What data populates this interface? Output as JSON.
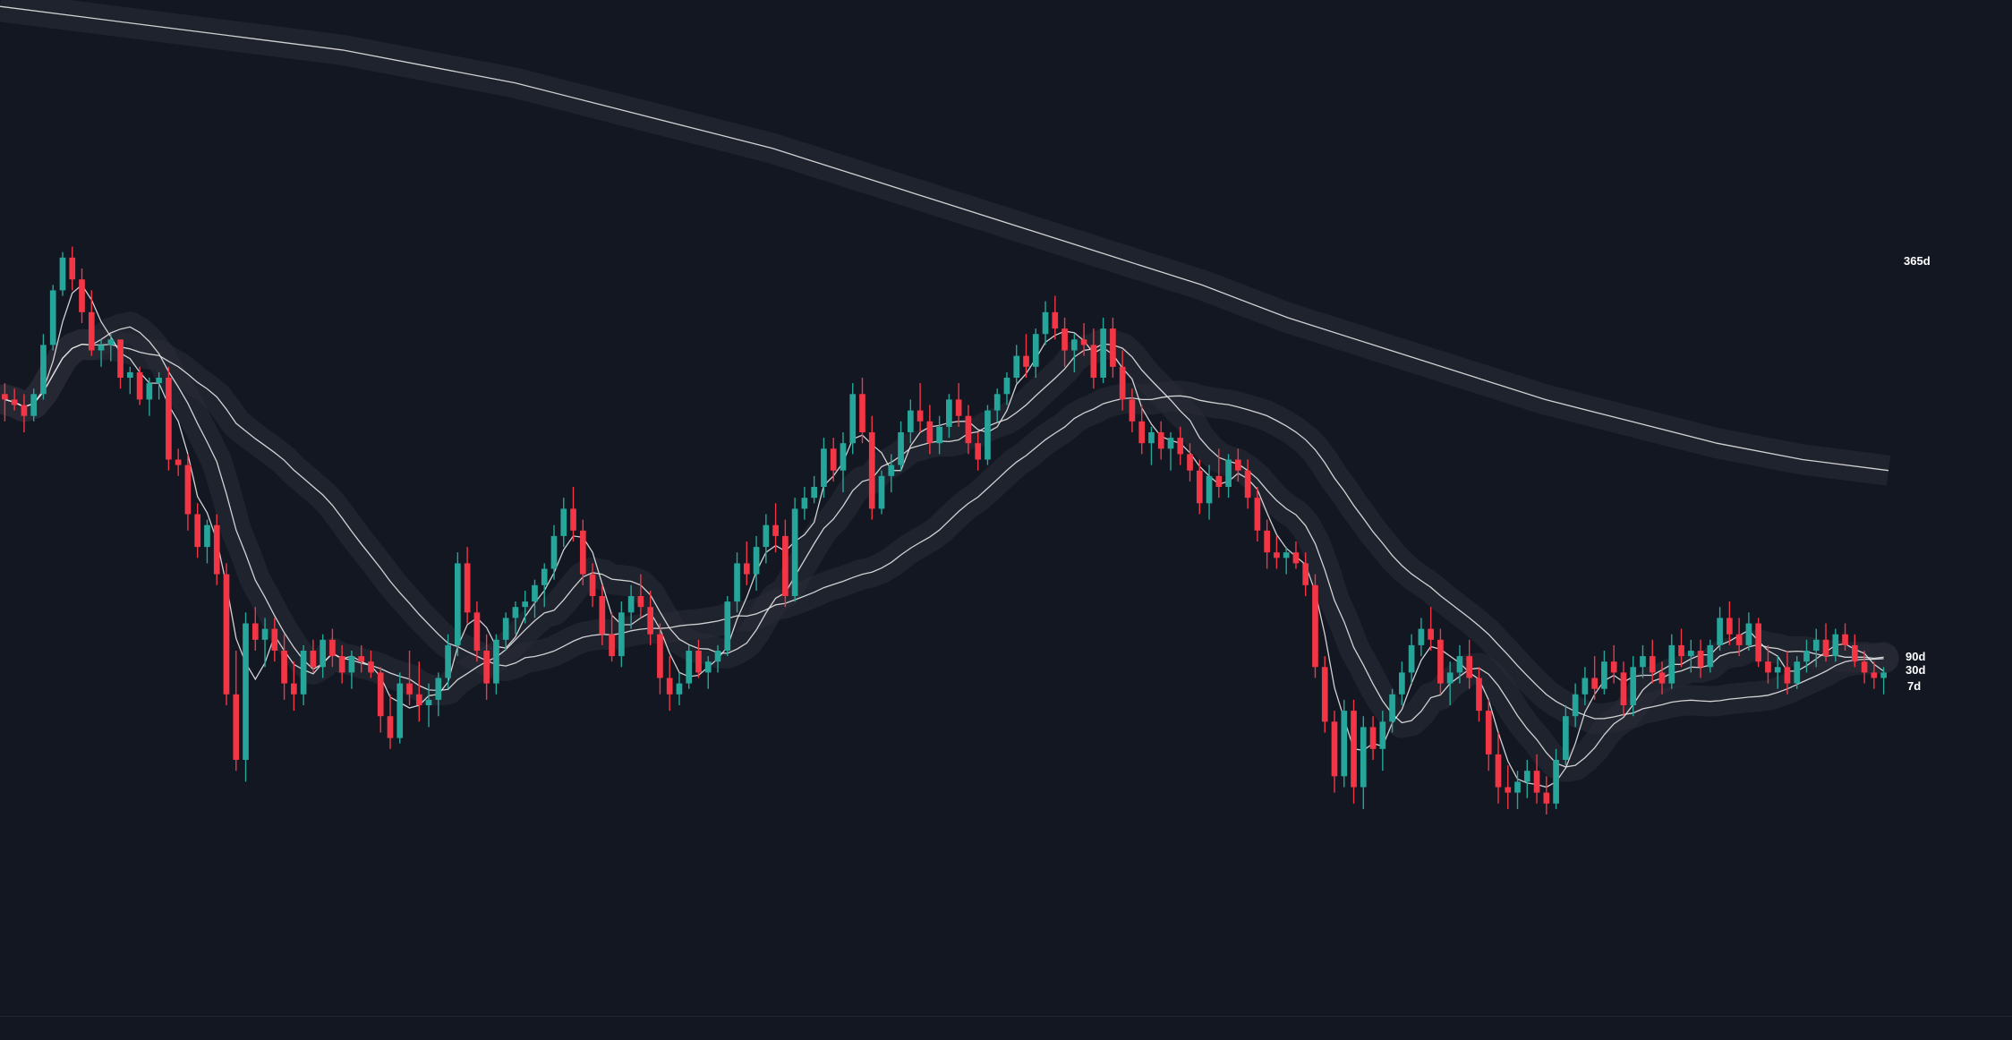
{
  "chart_data": {
    "type": "candlestick",
    "title": "",
    "xlabel": "",
    "ylabel": "",
    "y_scale": "linear",
    "grid": false,
    "legend": "none",
    "ylim": [
      0,
      100
    ],
    "colors": {
      "background": "#131722",
      "up": "#26a69a",
      "down": "#f23645",
      "ma_line": "#e6e6e6",
      "ma_band": "#2a2e39",
      "label": "#ffffff"
    },
    "candles": [
      [
        77,
        79,
        72,
        76
      ],
      [
        76,
        78,
        74,
        75
      ],
      [
        75,
        77,
        70,
        73
      ],
      [
        73,
        78,
        72,
        77
      ],
      [
        77,
        88,
        76,
        86
      ],
      [
        86,
        97,
        85,
        96
      ],
      [
        96,
        103,
        95,
        102
      ],
      [
        102,
        104,
        96,
        98
      ],
      [
        98,
        100,
        90,
        92
      ],
      [
        92,
        96,
        84,
        85
      ],
      [
        85,
        87,
        82,
        86
      ],
      [
        86,
        88,
        83,
        87
      ],
      [
        87,
        86,
        78,
        80
      ],
      [
        80,
        82,
        77,
        81
      ],
      [
        81,
        82,
        75,
        76
      ],
      [
        76,
        80,
        73,
        79
      ],
      [
        79,
        81,
        76,
        80
      ],
      [
        80,
        82,
        63,
        65
      ],
      [
        65,
        67,
        62,
        64
      ],
      [
        64,
        66,
        52,
        55
      ],
      [
        55,
        57,
        47,
        49
      ],
      [
        49,
        54,
        46,
        53
      ],
      [
        53,
        55,
        42,
        44
      ],
      [
        44,
        46,
        20,
        22
      ],
      [
        22,
        30,
        8,
        10
      ],
      [
        10,
        37,
        6,
        35
      ],
      [
        35,
        38,
        30,
        32
      ],
      [
        32,
        36,
        27,
        34
      ],
      [
        34,
        36,
        28,
        30
      ],
      [
        30,
        33,
        21,
        24
      ],
      [
        24,
        28,
        19,
        22
      ],
      [
        22,
        31,
        20,
        30
      ],
      [
        30,
        32,
        26,
        27
      ],
      [
        27,
        33,
        25,
        32
      ],
      [
        32,
        34,
        27,
        29
      ],
      [
        29,
        31,
        24,
        26
      ],
      [
        26,
        30,
        23,
        29
      ],
      [
        29,
        31,
        26,
        28
      ],
      [
        28,
        30,
        25,
        26
      ],
      [
        26,
        27,
        15,
        18
      ],
      [
        18,
        22,
        12,
        14
      ],
      [
        14,
        26,
        13,
        24
      ],
      [
        24,
        30,
        20,
        22
      ],
      [
        22,
        28,
        17,
        20
      ],
      [
        20,
        24,
        16,
        21
      ],
      [
        21,
        26,
        18,
        25
      ],
      [
        25,
        33,
        23,
        31
      ],
      [
        31,
        48,
        29,
        46
      ],
      [
        46,
        49,
        35,
        37
      ],
      [
        37,
        39,
        28,
        30
      ],
      [
        30,
        33,
        21,
        24
      ],
      [
        24,
        33,
        22,
        32
      ],
      [
        32,
        37,
        30,
        36
      ],
      [
        36,
        39,
        33,
        38
      ],
      [
        38,
        41,
        35,
        39
      ],
      [
        39,
        43,
        36,
        42
      ],
      [
        42,
        46,
        38,
        45
      ],
      [
        45,
        53,
        43,
        51
      ],
      [
        51,
        58,
        49,
        56
      ],
      [
        56,
        60,
        50,
        52
      ],
      [
        52,
        54,
        42,
        44
      ],
      [
        44,
        46,
        38,
        40
      ],
      [
        40,
        42,
        31,
        33
      ],
      [
        33,
        37,
        28,
        29
      ],
      [
        29,
        39,
        27,
        37
      ],
      [
        37,
        42,
        34,
        40
      ],
      [
        40,
        44,
        36,
        38
      ],
      [
        38,
        41,
        31,
        33
      ],
      [
        33,
        35,
        22,
        25
      ],
      [
        25,
        29,
        19,
        22
      ],
      [
        22,
        26,
        20,
        24
      ],
      [
        24,
        31,
        23,
        30
      ],
      [
        30,
        32,
        25,
        26
      ],
      [
        26,
        29,
        23,
        28
      ],
      [
        28,
        31,
        26,
        30
      ],
      [
        30,
        40,
        29,
        39
      ],
      [
        39,
        48,
        37,
        46
      ],
      [
        46,
        50,
        42,
        44
      ],
      [
        44,
        51,
        41,
        49
      ],
      [
        49,
        55,
        46,
        53
      ],
      [
        53,
        57,
        48,
        51
      ],
      [
        51,
        54,
        38,
        40
      ],
      [
        40,
        58,
        39,
        56
      ],
      [
        56,
        60,
        54,
        58
      ],
      [
        58,
        62,
        57,
        60
      ],
      [
        60,
        69,
        58,
        67
      ],
      [
        67,
        69,
        61,
        63
      ],
      [
        63,
        70,
        59,
        68
      ],
      [
        68,
        79,
        66,
        77
      ],
      [
        77,
        80,
        68,
        70
      ],
      [
        70,
        73,
        54,
        56
      ],
      [
        56,
        63,
        55,
        62
      ],
      [
        62,
        66,
        59,
        64
      ],
      [
        64,
        72,
        63,
        70
      ],
      [
        70,
        76,
        68,
        74
      ],
      [
        74,
        79,
        70,
        72
      ],
      [
        72,
        75,
        66,
        68
      ],
      [
        68,
        73,
        66,
        71
      ],
      [
        71,
        77,
        69,
        76
      ],
      [
        76,
        79,
        71,
        73
      ],
      [
        73,
        75,
        66,
        68
      ],
      [
        68,
        70,
        63,
        65
      ],
      [
        65,
        75,
        64,
        74
      ],
      [
        74,
        78,
        72,
        77
      ],
      [
        77,
        81,
        75,
        80
      ],
      [
        80,
        86,
        79,
        84
      ],
      [
        84,
        88,
        80,
        82
      ],
      [
        82,
        89,
        80,
        88
      ],
      [
        88,
        94,
        86,
        92
      ],
      [
        92,
        95,
        87,
        89
      ],
      [
        89,
        91,
        82,
        85
      ],
      [
        85,
        88,
        81,
        87
      ],
      [
        87,
        90,
        84,
        86
      ],
      [
        86,
        89,
        78,
        80
      ],
      [
        80,
        91,
        79,
        89
      ],
      [
        89,
        91,
        80,
        82
      ],
      [
        82,
        85,
        74,
        76
      ],
      [
        76,
        78,
        70,
        72
      ],
      [
        72,
        75,
        66,
        68
      ],
      [
        68,
        71,
        64,
        70
      ],
      [
        70,
        72,
        65,
        67
      ],
      [
        67,
        70,
        63,
        69
      ],
      [
        69,
        71,
        64,
        66
      ],
      [
        66,
        68,
        61,
        63
      ],
      [
        63,
        65,
        55,
        57
      ],
      [
        57,
        64,
        54,
        62
      ],
      [
        62,
        67,
        58,
        60
      ],
      [
        60,
        66,
        58,
        65
      ],
      [
        65,
        67,
        61,
        63
      ],
      [
        63,
        65,
        56,
        58
      ],
      [
        58,
        60,
        50,
        52
      ],
      [
        52,
        54,
        45,
        48
      ],
      [
        48,
        51,
        45,
        47
      ],
      [
        47,
        49,
        44,
        48
      ],
      [
        48,
        50,
        45,
        46
      ],
      [
        46,
        48,
        40,
        42
      ],
      [
        42,
        44,
        25,
        27
      ],
      [
        27,
        29,
        15,
        17
      ],
      [
        17,
        19,
        4,
        7
      ],
      [
        7,
        21,
        5,
        19
      ],
      [
        19,
        21,
        2,
        5
      ],
      [
        5,
        18,
        1,
        16
      ],
      [
        16,
        18,
        10,
        12
      ],
      [
        12,
        19,
        8,
        17
      ],
      [
        17,
        23,
        15,
        22
      ],
      [
        22,
        28,
        20,
        26
      ],
      [
        26,
        33,
        24,
        31
      ],
      [
        31,
        36,
        29,
        34
      ],
      [
        34,
        38,
        30,
        32
      ],
      [
        32,
        34,
        22,
        24
      ],
      [
        24,
        28,
        20,
        26
      ],
      [
        26,
        31,
        24,
        29
      ],
      [
        29,
        32,
        23,
        25
      ],
      [
        25,
        27,
        17,
        19
      ],
      [
        19,
        21,
        8,
        11
      ],
      [
        11,
        15,
        2,
        5
      ],
      [
        5,
        9,
        1,
        4
      ],
      [
        4,
        8,
        1,
        6
      ],
      [
        6,
        10,
        3,
        8
      ],
      [
        8,
        11,
        2,
        4
      ],
      [
        4,
        7,
        0,
        2
      ],
      [
        2,
        12,
        1,
        10
      ],
      [
        10,
        20,
        9,
        18
      ],
      [
        18,
        24,
        16,
        22
      ],
      [
        22,
        27,
        20,
        25
      ],
      [
        25,
        29,
        21,
        23
      ],
      [
        23,
        30,
        22,
        28
      ],
      [
        28,
        31,
        24,
        26
      ],
      [
        26,
        28,
        18,
        20
      ],
      [
        20,
        29,
        18,
        27
      ],
      [
        27,
        31,
        25,
        29
      ],
      [
        29,
        32,
        24,
        26
      ],
      [
        26,
        28,
        22,
        24
      ],
      [
        24,
        33,
        23,
        31
      ],
      [
        31,
        34,
        27,
        29
      ],
      [
        29,
        32,
        26,
        30
      ],
      [
        30,
        32,
        25,
        27
      ],
      [
        27,
        32,
        26,
        31
      ],
      [
        31,
        38,
        30,
        36
      ],
      [
        36,
        39,
        31,
        33
      ],
      [
        33,
        36,
        29,
        31
      ],
      [
        31,
        37,
        30,
        35
      ],
      [
        35,
        36,
        27,
        28
      ],
      [
        28,
        31,
        24,
        26
      ],
      [
        26,
        29,
        23,
        27
      ],
      [
        27,
        30,
        22,
        24
      ],
      [
        24,
        29,
        23,
        28
      ],
      [
        28,
        32,
        26,
        30
      ],
      [
        30,
        34,
        27,
        32
      ],
      [
        32,
        35,
        28,
        29
      ],
      [
        29,
        34,
        28,
        33
      ],
      [
        33,
        35,
        30,
        31
      ],
      [
        31,
        33,
        27,
        28
      ],
      [
        28,
        30,
        24,
        26
      ],
      [
        26,
        28,
        23,
        25
      ],
      [
        25,
        27,
        22,
        26
      ]
    ],
    "ma_series": [
      {
        "name": "7d"
      },
      {
        "name": "30d"
      },
      {
        "name": "90d"
      },
      {
        "name": "365d"
      }
    ],
    "ma_365": [
      [
        0,
        148
      ],
      [
        50,
        146
      ],
      [
        100,
        144
      ],
      [
        150,
        142
      ],
      [
        200,
        140
      ],
      [
        250,
        137
      ],
      [
        300,
        134
      ],
      [
        350,
        130
      ],
      [
        400,
        126
      ],
      [
        450,
        122
      ],
      [
        500,
        117
      ],
      [
        550,
        112
      ],
      [
        600,
        107
      ],
      [
        650,
        102
      ],
      [
        700,
        97
      ],
      [
        750,
        91
      ],
      [
        800,
        86
      ],
      [
        850,
        81
      ],
      [
        900,
        76
      ],
      [
        950,
        72
      ],
      [
        1000,
        68
      ],
      [
        1050,
        65
      ],
      [
        1100,
        63
      ]
    ]
  },
  "labels": {
    "ma_365": "365d",
    "ma_90": "90d",
    "ma_30": "30d",
    "ma_7": "7d"
  }
}
